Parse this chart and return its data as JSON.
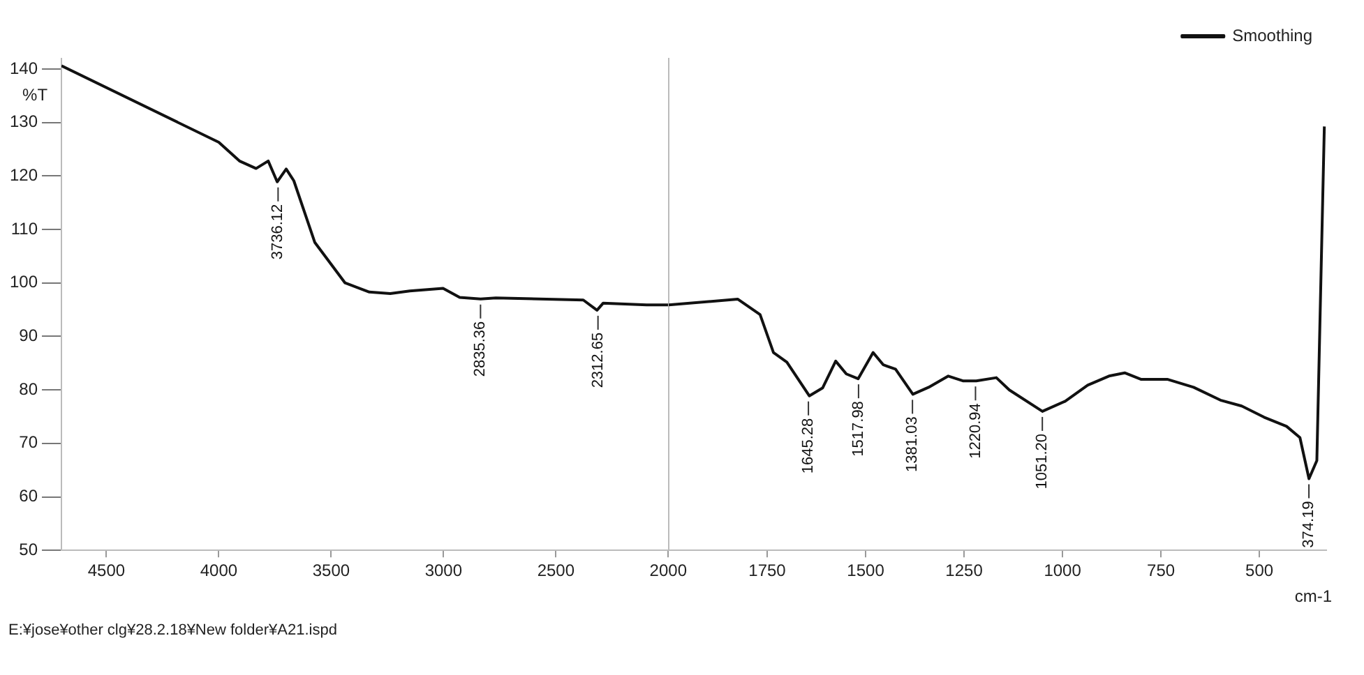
{
  "chart_data": [
    {
      "type": "line",
      "ylabel": "%T",
      "xlim": [
        4700,
        2000
      ],
      "xticks": [
        4500,
        4000,
        3500,
        3000,
        2500,
        2000
      ],
      "ylim": [
        50,
        142
      ],
      "yticks": [
        50,
        60,
        70,
        80,
        90,
        100,
        110,
        120,
        130,
        140
      ],
      "grid": false,
      "marker": "none",
      "tick_labels": "xy",
      "series": [
        {
          "color": "#111111",
          "x": [
            4700,
            4000,
            3908,
            3834,
            3780,
            3740,
            3700,
            3666,
            3573,
            3438,
            3330,
            3237,
            3150,
            3002,
            2928,
            2835,
            2767,
            2378,
            2317,
            2290,
            2096,
            2000
          ],
          "values": [
            140.6,
            126.3,
            122.8,
            121.4,
            122.8,
            118.9,
            121.3,
            119.1,
            107.6,
            100,
            98.3,
            98,
            98.5,
            99,
            97.3,
            97,
            97.2,
            96.8,
            94.9,
            96.2,
            95.9,
            95.9
          ]
        }
      ],
      "annotations": [
        {
          "text": "3736.12",
          "x": 3736.12,
          "y": 118.9
        },
        {
          "text": "2835.36",
          "x": 2835.36,
          "y": 97
        },
        {
          "text": "2312.65",
          "x": 2312.65,
          "y": 94.9
        },
        "E:¥jose¥other clg¥28.2.18¥New folder¥A21.ispd"
      ]
    },
    {
      "type": "line",
      "xlabel": "cm-1",
      "xlim": [
        2000,
        330
      ],
      "xticks": [
        1750,
        1500,
        1250,
        1000,
        750,
        500
      ],
      "ylim": [
        50,
        142
      ],
      "grid": false,
      "marker": "none",
      "tick_labels": "x",
      "legend": "top right",
      "series": [
        {
          "name": "Smoothing",
          "color": "#111111",
          "x": [
            2000,
            1825,
            1768,
            1734,
            1700,
            1643,
            1609,
            1576,
            1549,
            1519,
            1481,
            1455,
            1424,
            1380,
            1340,
            1290,
            1253,
            1219,
            1168,
            1135,
            1051,
            993,
            936,
            882,
            842,
            801,
            734,
            667,
            599,
            545,
            488,
            431,
            397,
            374,
            354,
            335
          ],
          "values": [
            95.9,
            97,
            94.1,
            87,
            85.2,
            78.9,
            80.4,
            85.4,
            83,
            82.1,
            87,
            84.7,
            83.9,
            79.2,
            80.5,
            82.6,
            81.7,
            81.7,
            82.3,
            80,
            76,
            77.9,
            80.9,
            82.6,
            83.2,
            82,
            82,
            80.5,
            78.1,
            77,
            74.9,
            73.2,
            71.1,
            63.4,
            66.8,
            129.3
          ]
        }
      ],
      "annotations": [
        {
          "text": "1645.28",
          "x": 1645.28,
          "y": 78.9
        },
        {
          "text": "1517.98",
          "x": 1517.98,
          "y": 82.1
        },
        {
          "text": "1381.03",
          "x": 1381.03,
          "y": 79.2
        },
        {
          "text": "1220.94",
          "x": 1220.94,
          "y": 81.7
        },
        {
          "text": "1051.20",
          "x": 1051.2,
          "y": 76
        },
        {
          "text": "374.19",
          "x": 374.19,
          "y": 63.4
        }
      ]
    }
  ]
}
